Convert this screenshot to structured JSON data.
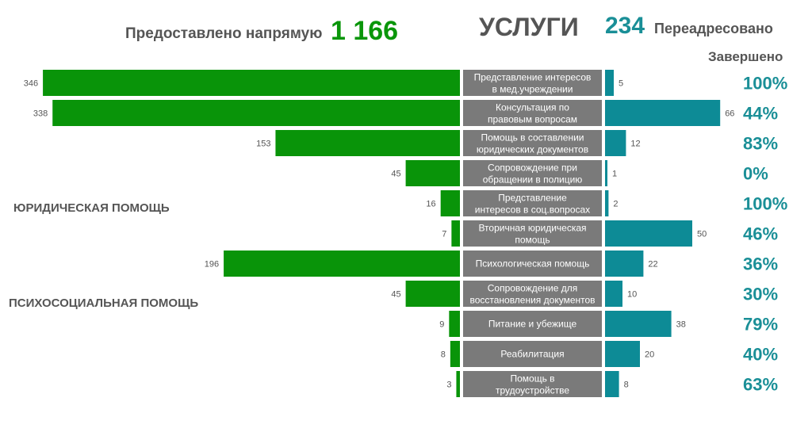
{
  "header": {
    "direct_label": "Предоставлено напрямую",
    "direct_value": "1 166",
    "title": "УСЛУГИ",
    "redirect_value": "234",
    "redirect_label": "Переадресовано",
    "completed_label": "Завершено"
  },
  "sections": {
    "legal": "ЮРИДИЧЕСКАЯ ПОМОЩЬ",
    "psycho": "ПСИХОСОЦИАЛЬНАЯ ПОМОЩЬ"
  },
  "colors": {
    "direct": "#099409",
    "redirect": "#0d8b96",
    "category_bg": "#7a7a7a"
  },
  "chart_data": {
    "type": "bar",
    "title": "УСЛУГИ",
    "categories": [
      [
        "Представление интересов",
        "в мед.учреждении"
      ],
      [
        "Консультация по",
        "правовым вопросам"
      ],
      [
        "Помощь в составлении",
        "юридических документов"
      ],
      [
        "Сопровождение при",
        "обращении в полицию"
      ],
      [
        "Представление",
        "интересов в соц.вопросах"
      ],
      [
        "Вторичная юридическая",
        "помощь"
      ],
      [
        "Психологическая помощь"
      ],
      [
        "Сопровождение для",
        "восстановления документов"
      ],
      [
        "Питание и убежище"
      ],
      [
        "Реабилитация"
      ],
      [
        "Помощь в",
        "трудоустройстве"
      ]
    ],
    "series": [
      {
        "name": "Предоставлено напрямую",
        "values": [
          346,
          338,
          153,
          45,
          16,
          7,
          196,
          45,
          9,
          8,
          3
        ]
      },
      {
        "name": "Переадресовано",
        "values": [
          5,
          66,
          12,
          1,
          2,
          50,
          22,
          10,
          38,
          20,
          8
        ]
      }
    ],
    "completed": [
      "100%",
      "44%",
      "83%",
      "0%",
      "100%",
      "46%",
      "36%",
      "30%",
      "79%",
      "40%",
      "63%"
    ]
  }
}
